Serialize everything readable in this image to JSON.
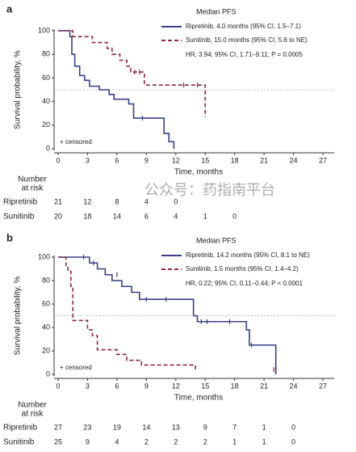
{
  "watermark": "公众号：药指南平台",
  "chart_data": [
    {
      "type": "km",
      "panel": "a",
      "legend_title": "Median PFS",
      "annotation": "HR, 3.94; 95% CI, 1.71–9.11; P = 0.0005",
      "censored_label": "+ censored",
      "xlabel": "Time, months",
      "ylabel": "Survival probability, %",
      "xlim": [
        0,
        27
      ],
      "ylim": [
        0,
        100
      ],
      "xticks": [
        0,
        3,
        6,
        9,
        12,
        15,
        18,
        21,
        24,
        27
      ],
      "yticks": [
        0,
        20,
        40,
        60,
        80,
        100
      ],
      "reference_line": 50,
      "series": [
        {
          "name": "Ripretinib, 4.0 months (95% CI, 1.5–7.1)",
          "color": "#3b3f8c",
          "dashed": false,
          "x": [
            0,
            1.2,
            1.4,
            1.7,
            2.2,
            2.7,
            3.2,
            4.2,
            5.2,
            5.7,
            7.2,
            7.7,
            10.8,
            11.3,
            11.8
          ],
          "values": [
            100,
            95,
            80,
            70,
            62,
            58,
            53,
            50,
            46,
            42,
            38,
            26,
            13,
            6,
            0
          ],
          "censored_x": [
            8.6
          ],
          "censored_values": [
            26
          ]
        },
        {
          "name": "Sunitinib, 15.0 months (95% CI, 5.6 to NE)",
          "color": "#8c2a3c",
          "dashed": true,
          "x": [
            0,
            1.5,
            3.5,
            5,
            5.5,
            6.3,
            7,
            7.4,
            8.8,
            15
          ],
          "values": [
            100,
            95,
            90,
            85,
            80,
            75,
            70,
            65,
            54,
            27
          ],
          "censored_x": [
            7.8,
            8.3,
            12.8,
            14.2
          ],
          "censored_values": [
            65,
            65,
            54,
            54
          ]
        }
      ],
      "at_risk_title": [
        "Number",
        "at risk"
      ],
      "at_risk": [
        {
          "name": "Ripretinib",
          "values": [
            21,
            12,
            8,
            4,
            0
          ]
        },
        {
          "name": "Sunitinib",
          "values": [
            20,
            18,
            14,
            6,
            4,
            1,
            0
          ]
        }
      ]
    },
    {
      "type": "km",
      "panel": "b",
      "legend_title": "Median PFS",
      "annotation": "HR, 0.22; 95% CI, 0.11–0.44; P < 0.0001",
      "censored_label": "+ censored",
      "xlabel": "Time, months",
      "ylabel": "Survival probability, %",
      "xlim": [
        0,
        27
      ],
      "ylim": [
        0,
        100
      ],
      "xticks": [
        0,
        3,
        6,
        9,
        12,
        15,
        18,
        21,
        24,
        27
      ],
      "yticks": [
        0,
        20,
        40,
        60,
        80,
        100
      ],
      "reference_line": 50,
      "series": [
        {
          "name": "Ripretinib, 14.2 months (95% CI, 8.1 to NE)",
          "color": "#3b3f8c",
          "dashed": false,
          "x": [
            0,
            3.2,
            4,
            4.8,
            5.5,
            6.5,
            7.5,
            8.3,
            13.8,
            14.2,
            19.2,
            19.5,
            22.2
          ],
          "values": [
            100,
            95,
            90,
            85,
            80,
            75,
            70,
            64,
            50,
            45,
            38,
            25,
            0
          ],
          "censored_x": [
            2.6,
            3.6,
            6,
            9,
            11,
            14.6,
            15.2,
            17.5,
            19.7
          ],
          "censored_values": [
            100,
            95,
            85,
            64,
            64,
            45,
            45,
            45,
            25
          ]
        },
        {
          "name": "Sunitinib, 1.5 months (95% CI, 1.4–4.2)",
          "color": "#8c2a3c",
          "dashed": true,
          "x": [
            0,
            0.8,
            1,
            1.3,
            1.5,
            3,
            3.5,
            4,
            6,
            7,
            8.5,
            14
          ],
          "values": [
            100,
            92,
            88,
            75,
            46,
            38,
            33,
            21,
            17,
            12,
            8,
            4
          ],
          "censored_x": [
            22
          ],
          "censored_values": [
            4
          ]
        }
      ],
      "at_risk_title": [
        "Number",
        "at risk"
      ],
      "at_risk": [
        {
          "name": "Ripretinib",
          "values": [
            27,
            23,
            19,
            14,
            13,
            9,
            7,
            1,
            0
          ]
        },
        {
          "name": "Sunitinib",
          "values": [
            25,
            9,
            4,
            2,
            2,
            2,
            1,
            1,
            0
          ]
        }
      ]
    }
  ]
}
